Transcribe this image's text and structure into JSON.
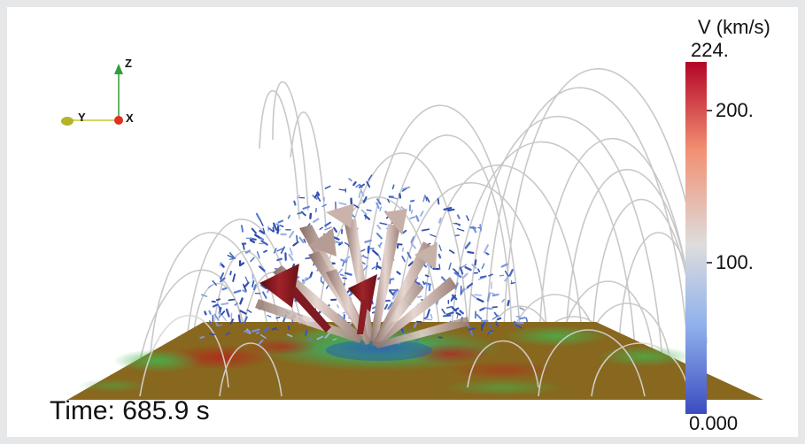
{
  "time_label": "Time: 685.9 s",
  "colorbar": {
    "title": "V (km/s)",
    "max_label": "224.",
    "min_label": "0.000",
    "ticks": [
      {
        "label": "200.",
        "value": 200
      },
      {
        "label": "100.",
        "value": 100
      }
    ],
    "range": [
      0,
      224
    ],
    "colors": [
      "#3b4cc0",
      "#8fb0ec",
      "#dddddd",
      "#f29072",
      "#b40426"
    ]
  },
  "axes": {
    "z_label": "Z",
    "y_label": "Y",
    "x_label": "X",
    "colors": {
      "z": "#2e9e3a",
      "y": "#c6c630",
      "x": "#e03020"
    }
  },
  "colors": {
    "background": "#ffffff",
    "frame": "#e6e7e8",
    "field_lines": "#c8c8c8",
    "plane_base": "#8a6a1e"
  }
}
